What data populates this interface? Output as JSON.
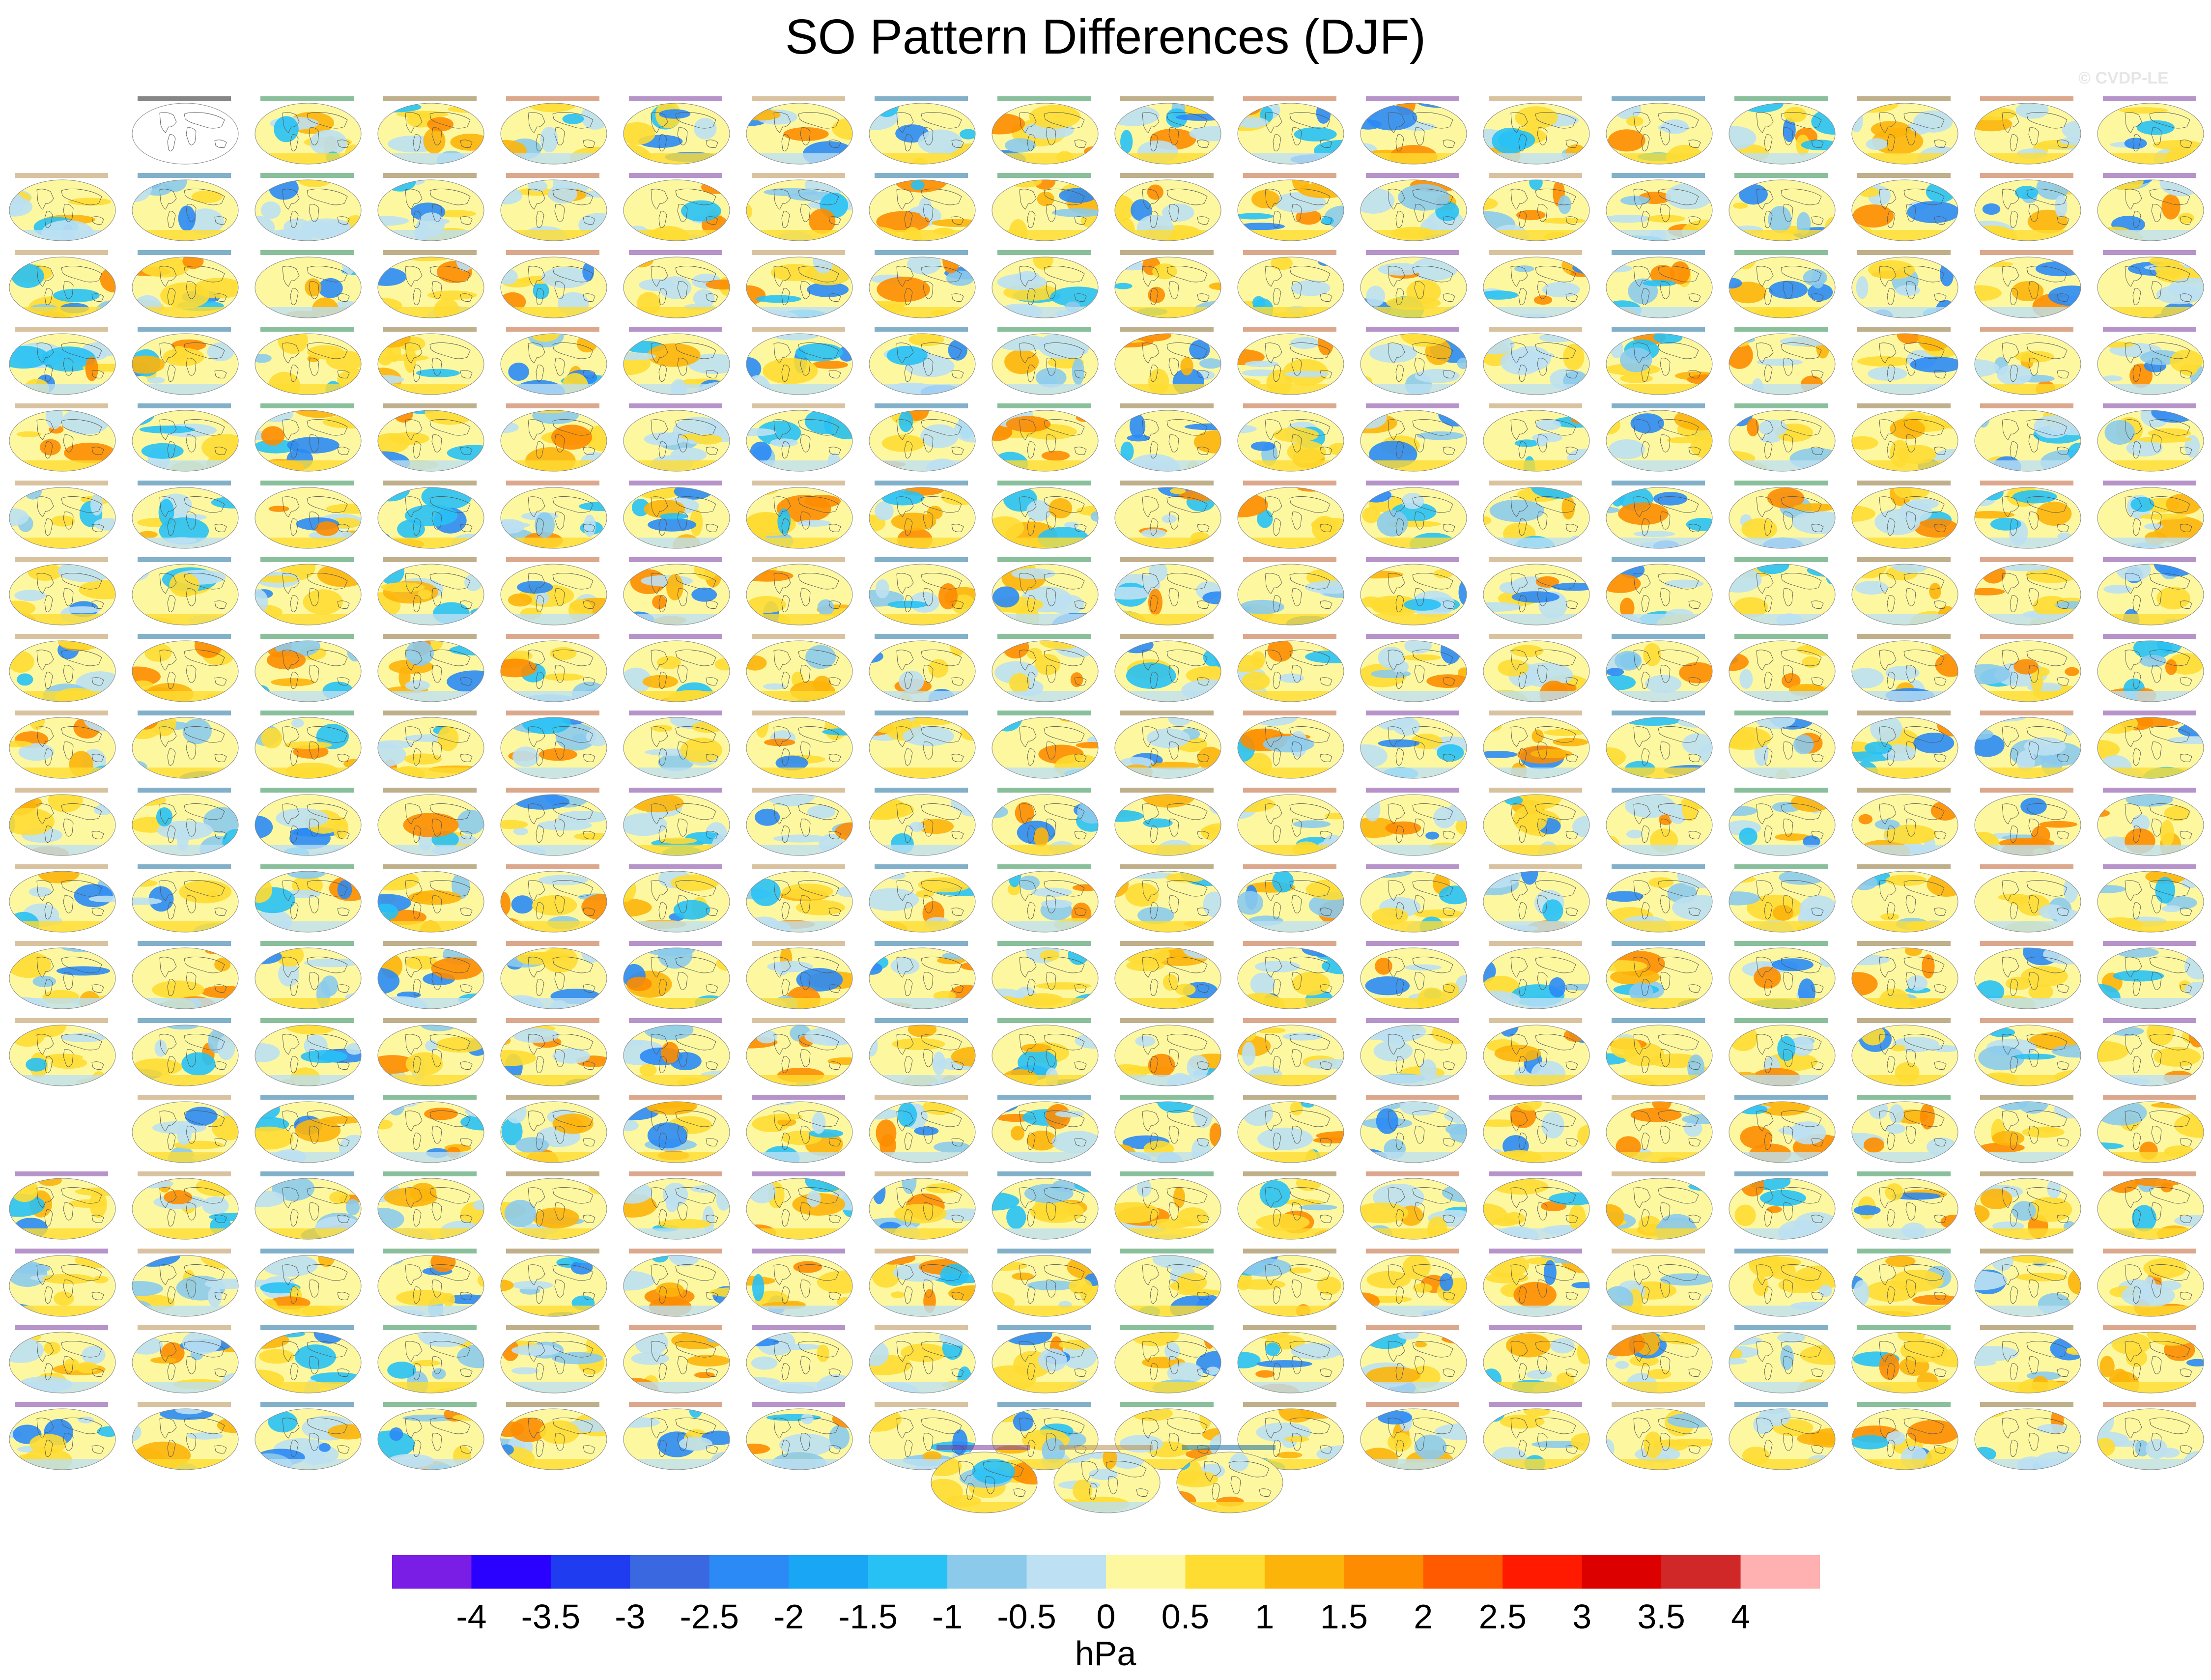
{
  "title": "SO Pattern Differences (DJF)",
  "watermark": "© CVDP-LE",
  "chart_data": {
    "type": "heatmap",
    "title": "SO Pattern Differences (DJF)",
    "description_panels": "Small-multiple global map panels, 18 columns by 18 rows plus 3 centered panels; first panel is the observational reference (unfilled map).",
    "units": "hPa",
    "colorbar": {
      "ticks": [
        "-4",
        "-3.5",
        "-3",
        "-2.5",
        "-2",
        "-1.5",
        "-1",
        "-0.5",
        "0",
        "0.5",
        "1",
        "1.5",
        "2",
        "2.5",
        "3",
        "3.5",
        "4"
      ],
      "colors": [
        "#7a1ee6",
        "#2a00ff",
        "#1f3cf0",
        "#3a68e0",
        "#2b8af5",
        "#18a6f5",
        "#28c1f5",
        "#8ccaec",
        "#bde0f2",
        "#fdf8a0",
        "#fedc32",
        "#fdb40a",
        "#fd8c00",
        "#ff5a00",
        "#ff1a00",
        "#dc0000",
        "#d02828",
        "#ffb0b0"
      ]
    }
  }
}
